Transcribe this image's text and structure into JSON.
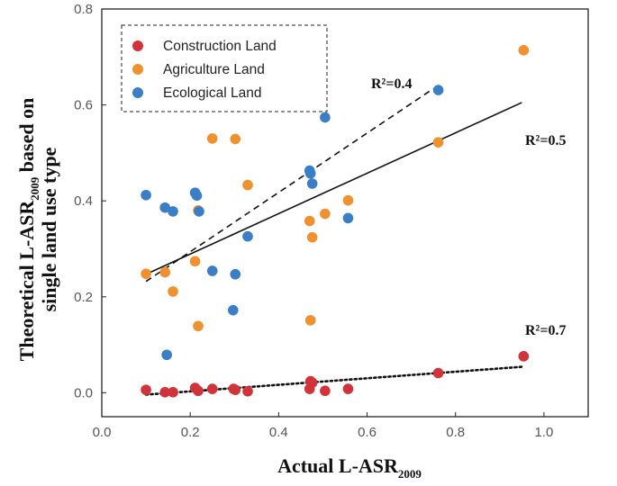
{
  "chart_data": {
    "type": "scatter",
    "xlabel": "Actual L-ASR",
    "xlabel_sub": "2009",
    "ylabel_line1_main": "Theoretical L-ASR",
    "ylabel_line1_sub": "2009",
    "ylabel_line1_end": " based on",
    "ylabel_line2": "single land use type",
    "xlim": [
      0.0,
      1.1
    ],
    "ylim": [
      -0.05,
      0.8
    ],
    "xticks": [
      0.0,
      0.2,
      0.4,
      0.6,
      0.8,
      1.0
    ],
    "xtick_labels": [
      "0.0",
      "0.2",
      "0.4",
      "0.6",
      "0.8",
      "1.0"
    ],
    "yticks": [
      0.0,
      0.2,
      0.4,
      0.6,
      0.8
    ],
    "ytick_labels": [
      "0.0",
      "0.2",
      "0.4",
      "0.6",
      "0.8"
    ],
    "legend_position": "top-left",
    "series": [
      {
        "name": "Construction Land",
        "color": "#d0343a",
        "points": [
          [
            0.1,
            0.006
          ],
          [
            0.143,
            0.001
          ],
          [
            0.161,
            0.001
          ],
          [
            0.211,
            0.01
          ],
          [
            0.218,
            0.004
          ],
          [
            0.25,
            0.008
          ],
          [
            0.298,
            0.008
          ],
          [
            0.302,
            0.006
          ],
          [
            0.33,
            0.003
          ],
          [
            0.47,
            0.008
          ],
          [
            0.472,
            0.024
          ],
          [
            0.476,
            0.021
          ],
          [
            0.505,
            0.004
          ],
          [
            0.557,
            0.008
          ],
          [
            0.761,
            0.041
          ],
          [
            0.954,
            0.076
          ]
        ],
        "fit": {
          "x": [
            0.1,
            0.95
          ],
          "y": [
            -0.004,
            0.054
          ],
          "style": "dotted",
          "r2_label": "R²=0.7"
        }
      },
      {
        "name": "Agriculture Land",
        "color": "#f0912f",
        "points": [
          [
            0.1,
            0.248
          ],
          [
            0.143,
            0.251
          ],
          [
            0.161,
            0.211
          ],
          [
            0.211,
            0.274
          ],
          [
            0.218,
            0.139
          ],
          [
            0.218,
            0.38
          ],
          [
            0.25,
            0.53
          ],
          [
            0.302,
            0.529
          ],
          [
            0.33,
            0.433
          ],
          [
            0.47,
            0.358
          ],
          [
            0.472,
            0.151
          ],
          [
            0.476,
            0.324
          ],
          [
            0.505,
            0.373
          ],
          [
            0.557,
            0.401
          ],
          [
            0.761,
            0.522
          ],
          [
            0.954,
            0.714
          ]
        ],
        "fit": {
          "x": [
            0.1,
            0.95
          ],
          "y": [
            0.247,
            0.605
          ],
          "style": "solid",
          "r2_label": "R²=0.5"
        }
      },
      {
        "name": "Ecological Land",
        "color": "#3a7ec6",
        "points": [
          [
            0.1,
            0.412
          ],
          [
            0.143,
            0.386
          ],
          [
            0.147,
            0.079
          ],
          [
            0.161,
            0.378
          ],
          [
            0.211,
            0.417
          ],
          [
            0.215,
            0.411
          ],
          [
            0.22,
            0.378
          ],
          [
            0.25,
            0.254
          ],
          [
            0.297,
            0.172
          ],
          [
            0.302,
            0.247
          ],
          [
            0.33,
            0.326
          ],
          [
            0.47,
            0.463
          ],
          [
            0.472,
            0.457
          ],
          [
            0.476,
            0.436
          ],
          [
            0.505,
            0.574
          ],
          [
            0.557,
            0.364
          ],
          [
            0.761,
            0.631
          ]
        ],
        "fit": {
          "x": [
            0.1,
            0.75
          ],
          "y": [
            0.232,
            0.634
          ],
          "style": "dashed",
          "r2_label": "R²=0.4"
        }
      }
    ]
  }
}
